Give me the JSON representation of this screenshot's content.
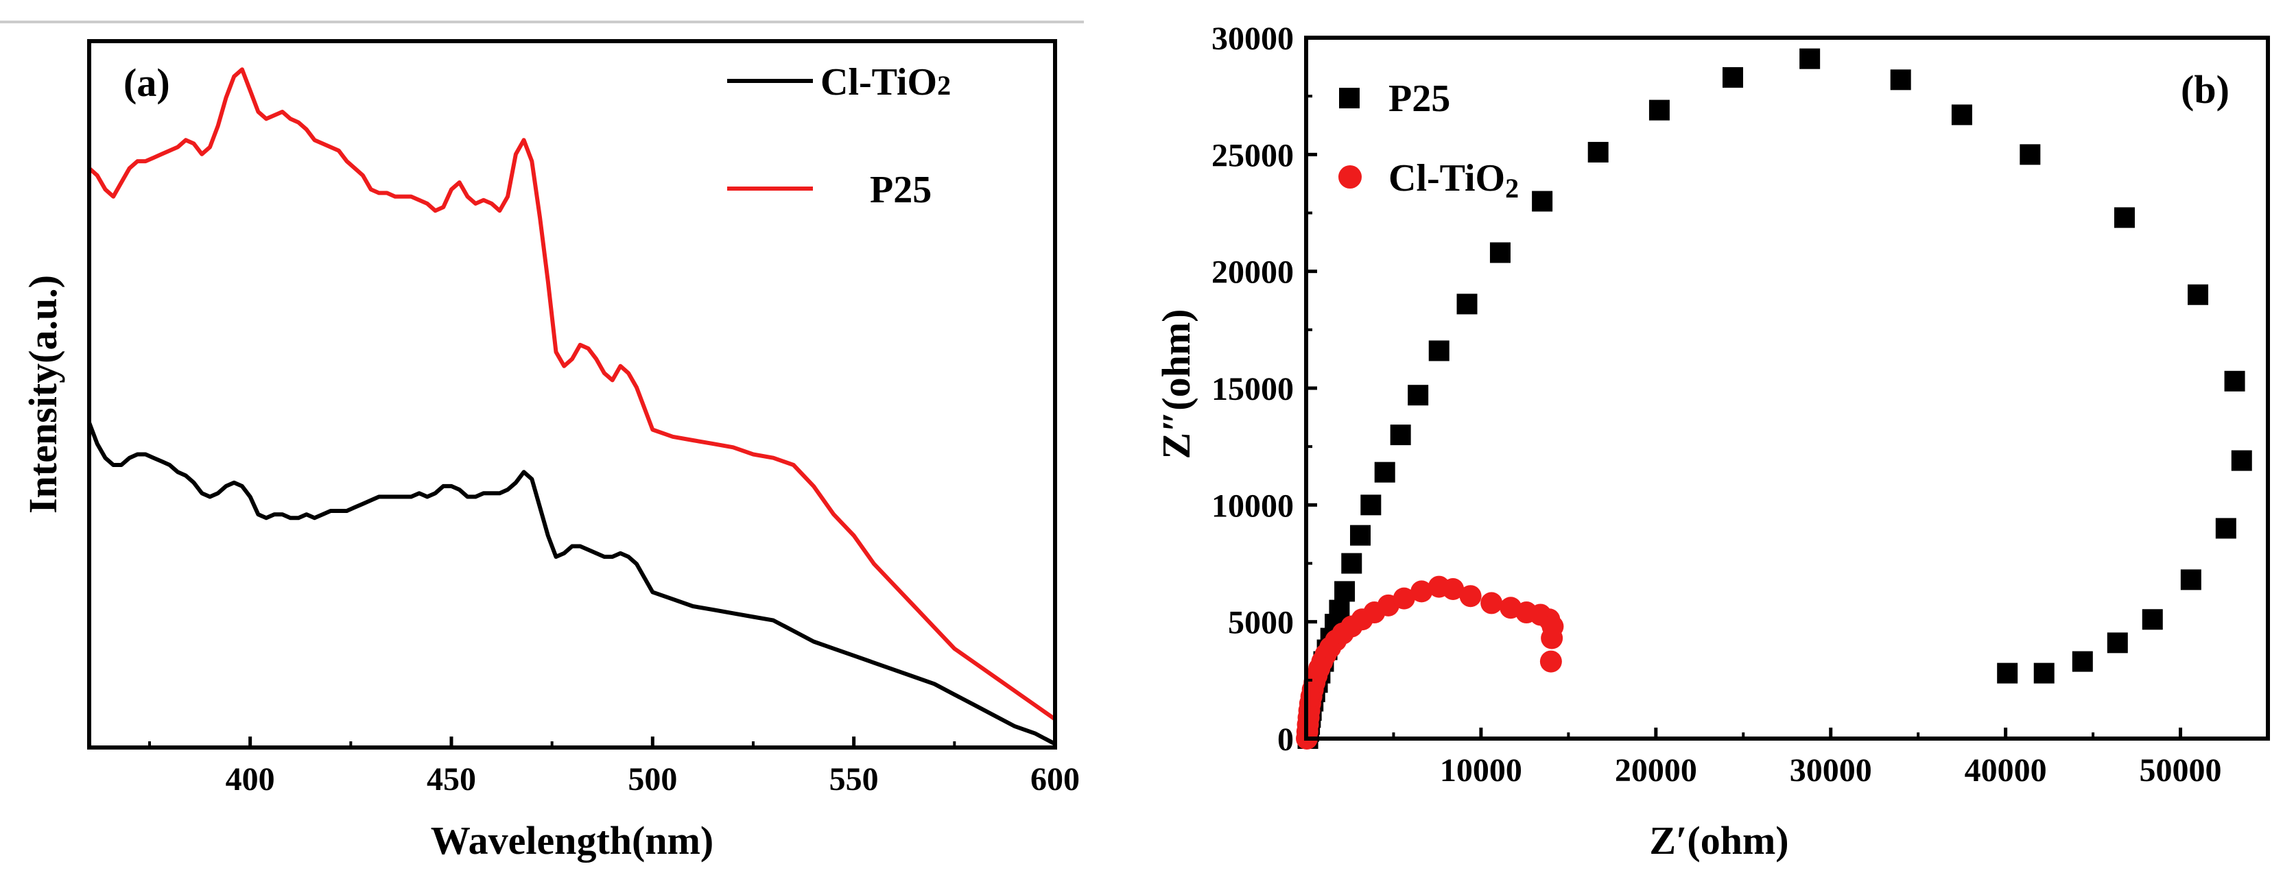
{
  "chart_data": [
    {
      "panel": "a",
      "type": "line",
      "panel_label": "(a)",
      "xlabel": "Wavelength(nm)",
      "ylabel": "Intensity(a.u.)",
      "xlim": [
        360,
        600
      ],
      "ylim": [
        0,
        1
      ],
      "xticks": [
        400,
        450,
        500,
        550,
        600
      ],
      "xtick_labels": [
        "400",
        "450",
        "500",
        "550",
        "600"
      ],
      "yticks_shown": false,
      "legend": {
        "position": "top-right",
        "entries": [
          {
            "label": "Cl-TiO",
            "subscript": "2",
            "color": "#000000"
          },
          {
            "label": "P25",
            "subscript": "",
            "color": "#ee1c1c"
          }
        ]
      },
      "series": [
        {
          "name": "Cl-TiO2",
          "color": "#000000",
          "x": [
            360,
            362,
            364,
            366,
            368,
            370,
            372,
            374,
            376,
            378,
            380,
            382,
            384,
            386,
            388,
            390,
            392,
            394,
            396,
            398,
            400,
            402,
            404,
            406,
            408,
            410,
            412,
            414,
            416,
            418,
            420,
            422,
            424,
            426,
            428,
            430,
            432,
            434,
            436,
            438,
            440,
            442,
            444,
            446,
            448,
            450,
            452,
            454,
            456,
            458,
            460,
            462,
            464,
            466,
            468,
            470,
            472,
            474,
            476,
            478,
            480,
            482,
            484,
            486,
            488,
            490,
            492,
            494,
            496,
            498,
            500,
            505,
            510,
            515,
            520,
            525,
            530,
            535,
            540,
            545,
            550,
            555,
            560,
            565,
            570,
            575,
            580,
            585,
            590,
            595,
            600
          ],
          "values": [
            0.46,
            0.43,
            0.41,
            0.4,
            0.4,
            0.41,
            0.415,
            0.415,
            0.41,
            0.405,
            0.4,
            0.39,
            0.385,
            0.375,
            0.36,
            0.355,
            0.36,
            0.37,
            0.375,
            0.37,
            0.355,
            0.33,
            0.325,
            0.33,
            0.33,
            0.325,
            0.325,
            0.33,
            0.325,
            0.33,
            0.335,
            0.335,
            0.335,
            0.34,
            0.345,
            0.35,
            0.355,
            0.355,
            0.355,
            0.355,
            0.355,
            0.36,
            0.355,
            0.36,
            0.37,
            0.37,
            0.365,
            0.355,
            0.355,
            0.36,
            0.36,
            0.36,
            0.365,
            0.375,
            0.39,
            0.38,
            0.34,
            0.3,
            0.27,
            0.275,
            0.285,
            0.285,
            0.28,
            0.275,
            0.27,
            0.27,
            0.275,
            0.27,
            0.26,
            0.24,
            0.22,
            0.21,
            0.2,
            0.195,
            0.19,
            0.185,
            0.18,
            0.165,
            0.15,
            0.14,
            0.13,
            0.12,
            0.11,
            0.1,
            0.09,
            0.075,
            0.06,
            0.045,
            0.03,
            0.02,
            0.005
          ]
        },
        {
          "name": "P25",
          "color": "#ee1c1c",
          "x": [
            360,
            362,
            364,
            366,
            368,
            370,
            372,
            374,
            376,
            378,
            380,
            382,
            384,
            386,
            388,
            390,
            392,
            394,
            396,
            398,
            400,
            402,
            404,
            406,
            408,
            410,
            412,
            414,
            416,
            418,
            420,
            422,
            424,
            426,
            428,
            430,
            432,
            434,
            436,
            438,
            440,
            442,
            444,
            446,
            448,
            450,
            452,
            454,
            456,
            458,
            460,
            462,
            464,
            466,
            468,
            470,
            472,
            474,
            476,
            478,
            480,
            482,
            484,
            486,
            488,
            490,
            492,
            494,
            496,
            498,
            500,
            505,
            510,
            515,
            520,
            525,
            530,
            535,
            540,
            545,
            550,
            555,
            560,
            565,
            570,
            575,
            580,
            585,
            590,
            595,
            600
          ],
          "values": [
            0.82,
            0.81,
            0.79,
            0.78,
            0.8,
            0.82,
            0.83,
            0.83,
            0.835,
            0.84,
            0.845,
            0.85,
            0.86,
            0.855,
            0.84,
            0.85,
            0.88,
            0.92,
            0.95,
            0.96,
            0.93,
            0.9,
            0.89,
            0.895,
            0.9,
            0.89,
            0.885,
            0.875,
            0.86,
            0.855,
            0.85,
            0.845,
            0.83,
            0.82,
            0.81,
            0.79,
            0.785,
            0.785,
            0.78,
            0.78,
            0.78,
            0.775,
            0.77,
            0.76,
            0.765,
            0.79,
            0.8,
            0.78,
            0.77,
            0.775,
            0.77,
            0.76,
            0.78,
            0.84,
            0.86,
            0.83,
            0.75,
            0.66,
            0.56,
            0.54,
            0.55,
            0.57,
            0.565,
            0.55,
            0.53,
            0.52,
            0.54,
            0.53,
            0.51,
            0.48,
            0.45,
            0.44,
            0.435,
            0.43,
            0.425,
            0.415,
            0.41,
            0.4,
            0.37,
            0.33,
            0.3,
            0.26,
            0.23,
            0.2,
            0.17,
            0.14,
            0.12,
            0.1,
            0.08,
            0.06,
            0.04
          ]
        }
      ]
    },
    {
      "panel": "b",
      "type": "scatter",
      "panel_label": "(b)",
      "xlabel": "Z′(ohm)",
      "ylabel": "Z″(ohm)",
      "xlim": [
        0,
        55000
      ],
      "ylim": [
        0,
        30000
      ],
      "xticks": [
        10000,
        20000,
        30000,
        40000,
        50000
      ],
      "xtick_labels": [
        "10000",
        "20000",
        "30000",
        "40000",
        "50000"
      ],
      "yticks": [
        0,
        5000,
        10000,
        15000,
        20000,
        25000,
        30000
      ],
      "ytick_labels": [
        "0",
        "5000",
        "10000",
        "15000",
        "20000",
        "25000",
        "30000"
      ],
      "legend": {
        "position": "top-left",
        "entries": [
          {
            "label": "P25",
            "subscript": "",
            "marker": "square",
            "color": "#000000"
          },
          {
            "label": "Cl-TiO",
            "subscript": "2",
            "marker": "circle",
            "color": "#ee1c1c"
          }
        ]
      },
      "series": [
        {
          "name": "P25",
          "marker": "square",
          "color": "#000000",
          "x": [
            100,
            150,
            200,
            250,
            300,
            400,
            500,
            650,
            800,
            1000,
            1200,
            1400,
            1650,
            1900,
            2200,
            2600,
            3100,
            3700,
            4500,
            5400,
            6400,
            7600,
            9200,
            11100,
            13500,
            16700,
            20200,
            24400,
            28800,
            34000,
            37500,
            41400,
            46800,
            51000,
            53100,
            53500,
            52600,
            50600,
            48400,
            46400,
            44400,
            42200,
            40100
          ],
          "y": [
            0,
            300,
            600,
            900,
            1200,
            1600,
            2000,
            2400,
            2800,
            3300,
            3800,
            4300,
            4900,
            5500,
            6300,
            7500,
            8700,
            10000,
            11400,
            13000,
            14700,
            16600,
            18600,
            20800,
            23000,
            25100,
            26900,
            28300,
            29100,
            28200,
            26700,
            25000,
            22300,
            19000,
            15300,
            11900,
            9000,
            6800,
            5100,
            4100,
            3300,
            2800,
            2800
          ]
        },
        {
          "name": "Cl-TiO2",
          "marker": "circle",
          "color": "#ee1c1c",
          "x": [
            40,
            70,
            100,
            140,
            180,
            230,
            300,
            380,
            480,
            600,
            750,
            920,
            1120,
            1380,
            1700,
            2100,
            2600,
            3200,
            3900,
            4700,
            5600,
            6600,
            7600,
            8400,
            9400,
            10600,
            11700,
            12600,
            13400,
            13900,
            14100,
            14050,
            14000
          ],
          "y": [
            0,
            300,
            600,
            900,
            1200,
            1500,
            1800,
            2100,
            2400,
            2700,
            3000,
            3300,
            3600,
            3900,
            4200,
            4500,
            4800,
            5100,
            5400,
            5700,
            6000,
            6300,
            6500,
            6400,
            6100,
            5800,
            5600,
            5400,
            5300,
            5100,
            4800,
            4300,
            3300
          ]
        }
      ]
    }
  ]
}
